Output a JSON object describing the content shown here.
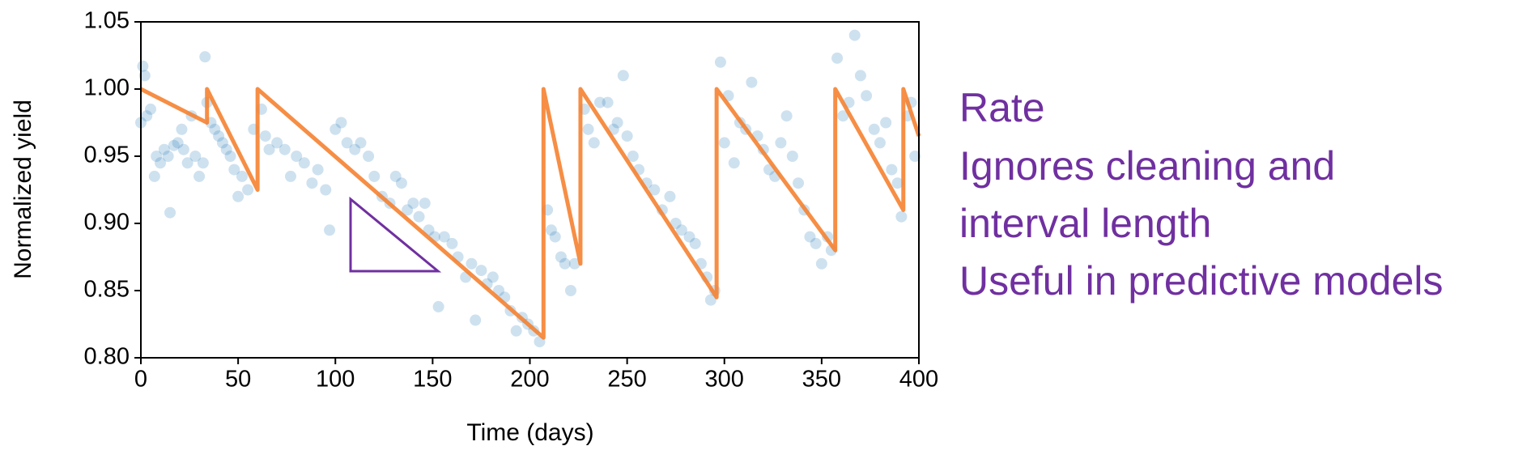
{
  "chart_data": {
    "type": "scatter",
    "xlabel": "Time (days)",
    "ylabel": "Normalized yield",
    "xlim": [
      0,
      400
    ],
    "ylim": [
      0.8,
      1.05
    ],
    "xticks": [
      0,
      50,
      100,
      150,
      200,
      250,
      300,
      350,
      400
    ],
    "yticks": [
      {
        "value": 0.8,
        "label": "0.80"
      },
      {
        "value": 0.85,
        "label": "0.85"
      },
      {
        "value": 0.9,
        "label": "0.90"
      },
      {
        "value": 0.95,
        "label": "0.95"
      },
      {
        "value": 1.0,
        "label": "1.00"
      },
      {
        "value": 1.05,
        "label": "1.05"
      }
    ],
    "annotations": [
      "Rate",
      "Ignores cleaning and",
      "interval length",
      "Useful in predictive models"
    ],
    "annotation_color": "#7030a0",
    "series": [
      {
        "type": "scatter",
        "color": "#1f77b4",
        "x": [
          0,
          1,
          2,
          3,
          5,
          7,
          8,
          10,
          12,
          14,
          15,
          17,
          19,
          21,
          22,
          24,
          26,
          28,
          30,
          32,
          34,
          33,
          36,
          38,
          40,
          42,
          44,
          46,
          48,
          50,
          52,
          55,
          58,
          62,
          64,
          66,
          70,
          74,
          77,
          80,
          84,
          88,
          91,
          95,
          97,
          100,
          103,
          106,
          110,
          113,
          117,
          120,
          124,
          128,
          131,
          134,
          137,
          140,
          143,
          146,
          148,
          151,
          153,
          156,
          160,
          163,
          167,
          170,
          172,
          175,
          178,
          181,
          184,
          187,
          190,
          193,
          196,
          199,
          202,
          205,
          209,
          211,
          213,
          216,
          218,
          221,
          223,
          228,
          230,
          233,
          236,
          240,
          243,
          245,
          248,
          250,
          253,
          256,
          260,
          264,
          268,
          272,
          275,
          278,
          282,
          285,
          288,
          291,
          293,
          295,
          298,
          300,
          302,
          305,
          308,
          311,
          314,
          317,
          320,
          323,
          326,
          329,
          332,
          335,
          338,
          341,
          344,
          347,
          350,
          353,
          355,
          358,
          361,
          364,
          367,
          370,
          373,
          377,
          380,
          383,
          386,
          389,
          391,
          394,
          396,
          398
        ],
        "values": [
          0.975,
          1.017,
          1.01,
          0.98,
          0.985,
          0.935,
          0.95,
          0.945,
          0.955,
          0.95,
          0.908,
          0.958,
          0.96,
          0.97,
          0.955,
          0.945,
          0.98,
          0.95,
          0.935,
          0.945,
          0.99,
          1.024,
          0.975,
          0.97,
          0.965,
          0.96,
          0.955,
          0.95,
          0.94,
          0.92,
          0.935,
          0.925,
          0.97,
          0.985,
          0.965,
          0.955,
          0.96,
          0.955,
          0.935,
          0.95,
          0.945,
          0.93,
          0.94,
          0.925,
          0.895,
          0.97,
          0.975,
          0.96,
          0.955,
          0.96,
          0.95,
          0.935,
          0.92,
          0.915,
          0.935,
          0.93,
          0.91,
          0.915,
          0.905,
          0.915,
          0.895,
          0.89,
          0.838,
          0.89,
          0.885,
          0.875,
          0.86,
          0.87,
          0.828,
          0.865,
          0.855,
          0.86,
          0.85,
          0.845,
          0.835,
          0.82,
          0.83,
          0.825,
          0.82,
          0.812,
          0.91,
          0.895,
          0.89,
          0.875,
          0.87,
          0.85,
          0.87,
          0.985,
          0.97,
          0.96,
          0.99,
          0.99,
          0.97,
          0.975,
          1.01,
          0.965,
          0.95,
          0.94,
          0.93,
          0.925,
          0.91,
          0.92,
          0.9,
          0.895,
          0.89,
          0.885,
          0.87,
          0.86,
          0.843,
          0.85,
          1.02,
          0.96,
          0.995,
          0.945,
          0.975,
          0.97,
          1.005,
          0.965,
          0.955,
          0.94,
          0.935,
          0.96,
          0.98,
          0.95,
          0.93,
          0.91,
          0.89,
          0.885,
          0.87,
          0.89,
          0.88,
          1.023,
          0.98,
          0.99,
          1.04,
          1.01,
          0.995,
          0.97,
          0.96,
          0.975,
          0.94,
          0.93,
          0.905,
          0.98,
          0.99,
          0.95
        ]
      },
      {
        "type": "line",
        "color": "#f58231",
        "x": [
          0,
          34,
          34,
          60,
          60,
          207,
          207,
          226,
          226,
          296,
          296,
          357,
          357,
          392,
          392,
          400
        ],
        "values": [
          1.0,
          0.975,
          1.0,
          0.925,
          1.0,
          0.815,
          1.0,
          0.87,
          1.0,
          0.845,
          1.0,
          0.88,
          1.0,
          0.91,
          1.0,
          0.965
        ]
      }
    ]
  }
}
